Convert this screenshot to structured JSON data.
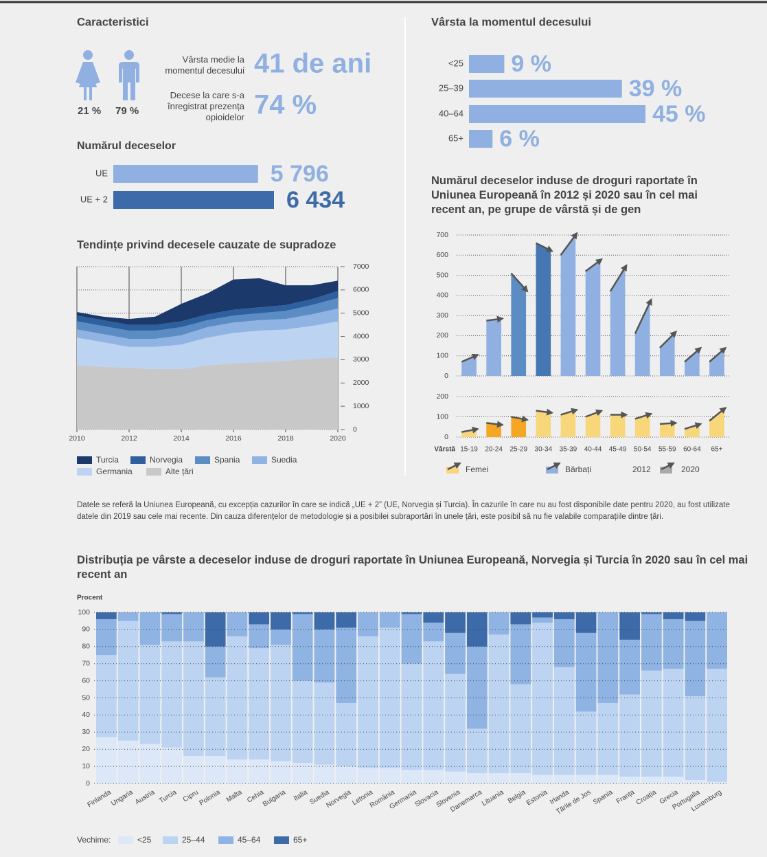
{
  "characteristics": {
    "title": "Caracteristici",
    "female_share": "21 %",
    "male_share": "79 %",
    "age_label": "Vârsta medie la momentul decesului",
    "age_value": "41 de ani",
    "opioid_label": "Decese la care s-a înregistrat prezența opioidelor",
    "opioid_value": "74 %"
  },
  "chart_data": [
    {
      "type": "hbar",
      "title": "Numărul deceselor",
      "categories": [
        "UE",
        "UE + 2"
      ],
      "values": [
        5796,
        6434
      ],
      "value_labels": [
        "5 796",
        "6 434"
      ],
      "colors": [
        "#8fb0e0",
        "#3d6aa8"
      ]
    },
    {
      "type": "hbar",
      "title": "Vârsta la momentul decesului",
      "categories": [
        "<25",
        "25–39",
        "40–64",
        "65+"
      ],
      "values": [
        9,
        39,
        45,
        6
      ],
      "value_labels": [
        "9 %",
        "39 %",
        "45 %",
        "6 %"
      ],
      "color": "#8fb0e0"
    },
    {
      "type": "stacked_area",
      "title": "Tendințe privind decesele cauzate de supradoze",
      "x": [
        2010,
        2011,
        2012,
        2013,
        2014,
        2015,
        2016,
        2017,
        2018,
        2019,
        2020
      ],
      "xlim": [
        2010,
        2020
      ],
      "xticks": [
        2010,
        2012,
        2014,
        2016,
        2018,
        2020
      ],
      "ylim": [
        0,
        7000
      ],
      "yticks": [
        0,
        1000,
        2000,
        3000,
        4000,
        5000,
        6000,
        7000
      ],
      "grid": true,
      "series": [
        {
          "name": "Turcia",
          "color": "#1b3a6b",
          "values": [
            150,
            150,
            250,
            350,
            750,
            900,
            1300,
            1250,
            850,
            600,
            450
          ]
        },
        {
          "name": "Norvegia",
          "color": "#2e5f9e",
          "values": [
            250,
            250,
            250,
            250,
            250,
            250,
            250,
            250,
            250,
            250,
            300
          ]
        },
        {
          "name": "Spania",
          "color": "#5b8cc4",
          "values": [
            350,
            350,
            350,
            350,
            350,
            300,
            300,
            300,
            350,
            400,
            450
          ]
        },
        {
          "name": "Suedia",
          "color": "#8fb3e3",
          "values": [
            350,
            350,
            350,
            350,
            400,
            450,
            450,
            450,
            450,
            500,
            550
          ]
        },
        {
          "name": "Germania",
          "color": "#bcd4f2",
          "values": [
            1200,
            1050,
            900,
            950,
            1050,
            1200,
            1300,
            1350,
            1350,
            1400,
            1550
          ]
        },
        {
          "name": "Alte țări",
          "color": "#c8c8c8",
          "values": [
            2750,
            2700,
            2650,
            2600,
            2600,
            2750,
            2850,
            2900,
            2950,
            3050,
            3100
          ]
        }
      ]
    },
    {
      "type": "arrow_bar",
      "title": "Numărul deceselor induse de droguri raportate în Uniunea Europeană în 2012 și 2020 sau în cel mai recent an, pe grupe de vârstă și de gen",
      "x_label": "Vârstă",
      "categories": [
        "15-19",
        "20-24",
        "25-29",
        "30-34",
        "35-39",
        "40-44",
        "45-49",
        "50-54",
        "55-59",
        "60-64",
        "65+"
      ],
      "panels": [
        {
          "name": "Bărbați",
          "ylim": [
            0,
            700
          ],
          "yticks": [
            0,
            100,
            200,
            300,
            400,
            500,
            600,
            700
          ],
          "colors": [
            "#8fb0e0",
            "#8fb0e0",
            "#5b8cc4",
            "#4677b3",
            "#8fb0e0",
            "#8fb0e0",
            "#8fb0e0",
            "#8fb0e0",
            "#8fb0e0",
            "#8fb0e0",
            "#8fb0e0"
          ],
          "series": [
            {
              "name": "2012",
              "values": [
                70,
                275,
                510,
                660,
                600,
                520,
                420,
                210,
                140,
                70,
                70
              ]
            },
            {
              "name": "2020",
              "values": [
                105,
                285,
                420,
                620,
                710,
                580,
                550,
                380,
                220,
                140,
                140
              ]
            }
          ]
        },
        {
          "name": "Femei",
          "ylim": [
            0,
            200
          ],
          "yticks": [
            0,
            100,
            200
          ],
          "colors": [
            "#f8d67a",
            "#f5a623",
            "#f5a623",
            "#f8d67a",
            "#f8d67a",
            "#f8d67a",
            "#f8d67a",
            "#f8d67a",
            "#f8d67a",
            "#f8d67a",
            "#f8d67a"
          ],
          "series": [
            {
              "name": "2012",
              "values": [
                25,
                70,
                100,
                130,
                110,
                100,
                110,
                90,
                65,
                40,
                80
              ]
            },
            {
              "name": "2020",
              "values": [
                40,
                60,
                85,
                120,
                135,
                130,
                110,
                115,
                70,
                65,
                145
              ]
            }
          ]
        }
      ]
    },
    {
      "type": "stacked_bar",
      "title": "Distribuția pe vârste a deceselor induse de droguri raportate în Uniunea Europeană, Norvegia și Turcia în 2020 sau în cel mai recent an",
      "y_label": "Procent",
      "legend_title": "Vechime:",
      "categories": [
        "Finlanda",
        "Ungaria",
        "Austria",
        "Turcia",
        "Cipru",
        "Polonia",
        "Malta",
        "Cehia",
        "Bulgaria",
        "Italia",
        "Suedia",
        "Norvegia",
        "Letonia",
        "România",
        "Germania",
        "Slovacia",
        "Slovenia",
        "Danemarca",
        "Lituania",
        "Belgia",
        "Estonia",
        "Irlanda",
        "Țările de Jos",
        "Spania",
        "Franța",
        "Croația",
        "Grecia",
        "Portugalia",
        "Luxemburg"
      ],
      "ylim": [
        0,
        100
      ],
      "yticks": [
        0,
        10,
        20,
        30,
        40,
        50,
        60,
        70,
        80,
        90,
        100
      ],
      "grid": true,
      "series": [
        {
          "name": "<25",
          "color": "#dce8f7",
          "values": [
            27,
            25,
            23,
            21,
            16,
            16,
            14,
            14,
            13,
            12,
            11,
            10,
            9,
            9,
            8,
            8,
            7,
            6,
            6,
            6,
            5,
            5,
            5,
            5,
            4,
            4,
            4,
            2,
            1
          ]
        },
        {
          "name": "25–44",
          "color": "#bcd4f2",
          "values": [
            48,
            70,
            58,
            62,
            67,
            46,
            72,
            65,
            68,
            48,
            48,
            37,
            77,
            82,
            62,
            75,
            57,
            26,
            81,
            52,
            89,
            63,
            37,
            42,
            48,
            62,
            63,
            49,
            66
          ]
        },
        {
          "name": "45–64",
          "color": "#8fb3e3",
          "values": [
            21,
            5,
            19,
            16,
            17,
            18,
            14,
            14,
            9,
            39,
            31,
            44,
            14,
            9,
            29,
            11,
            24,
            48,
            13,
            35,
            3,
            28,
            46,
            53,
            32,
            33,
            29,
            44,
            33
          ]
        },
        {
          "name": "65+",
          "color": "#3d6aa8",
          "values": [
            4,
            0,
            0,
            1,
            0,
            20,
            0,
            7,
            10,
            1,
            10,
            9,
            0,
            0,
            1,
            6,
            12,
            20,
            0,
            7,
            3,
            4,
            12,
            0,
            16,
            1,
            4,
            5,
            0
          ]
        }
      ]
    }
  ],
  "footnote": "Datele se referă la Uniunea Europeană, cu excepția cazurilor în care se indică „UE + 2” (UE, Norvegia și Turcia). În cazurile în care nu au fost disponibile date pentru 2020, au fost utilizate datele din 2019 sau cele mai recente. Din cauza diferențelor de metodologie și a posibilei subraportări în unele țări, este posibil să nu fie valabile comparațiile dintre țări."
}
